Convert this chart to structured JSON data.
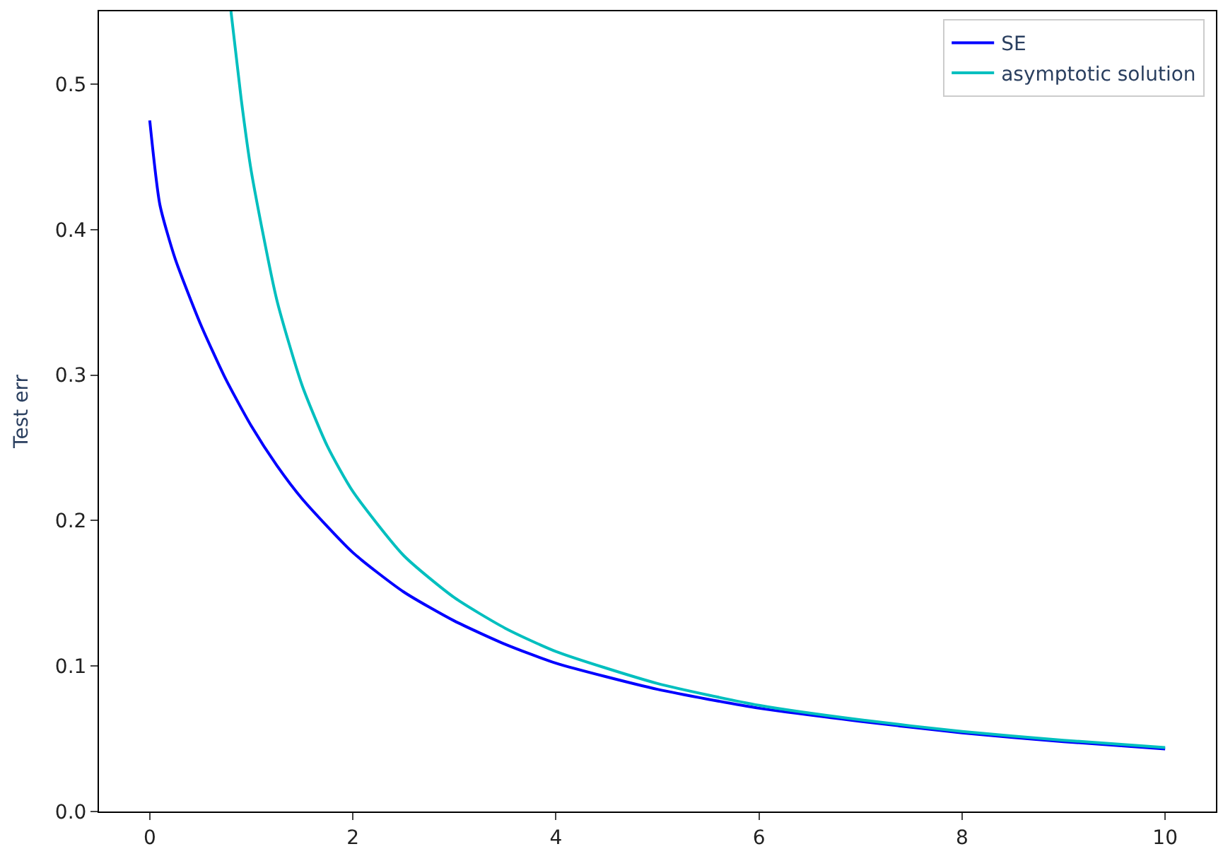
{
  "chart_data": {
    "type": "line",
    "ylabel": "Test err",
    "xlim": [
      -0.5,
      10.5
    ],
    "ylim": [
      0,
      0.55
    ],
    "xticks": [
      0,
      2,
      4,
      6,
      8,
      10
    ],
    "yticks": [
      {
        "value": 0,
        "label": "0.0"
      },
      0.1,
      0.2,
      0.3,
      0.4,
      0.5
    ],
    "legend": "top right",
    "series": [
      {
        "name": "SE",
        "color": "#0000ff",
        "x": [
          0,
          0.1,
          0.25,
          0.5,
          0.75,
          1,
          1.25,
          1.5,
          2,
          2.5,
          3,
          3.5,
          4,
          5,
          6,
          7,
          8,
          9,
          10
        ],
        "values": [
          0.475,
          0.417,
          0.38,
          0.335,
          0.297,
          0.265,
          0.238,
          0.215,
          0.178,
          0.151,
          0.131,
          0.115,
          0.102,
          0.084,
          0.071,
          0.062,
          0.054,
          0.048,
          0.043
        ]
      },
      {
        "name": "asymptotic solution",
        "color": "#00bfbf",
        "x": [
          0.8,
          0.9,
          1,
          1.25,
          1.5,
          1.75,
          2,
          2.5,
          3,
          3.5,
          4,
          5,
          6,
          7,
          8,
          9,
          10
        ],
        "values": [
          0.55,
          0.49,
          0.44,
          0.352,
          0.293,
          0.251,
          0.22,
          0.176,
          0.147,
          0.126,
          0.11,
          0.088,
          0.073,
          0.063,
          0.055,
          0.049,
          0.044
        ]
      }
    ]
  }
}
